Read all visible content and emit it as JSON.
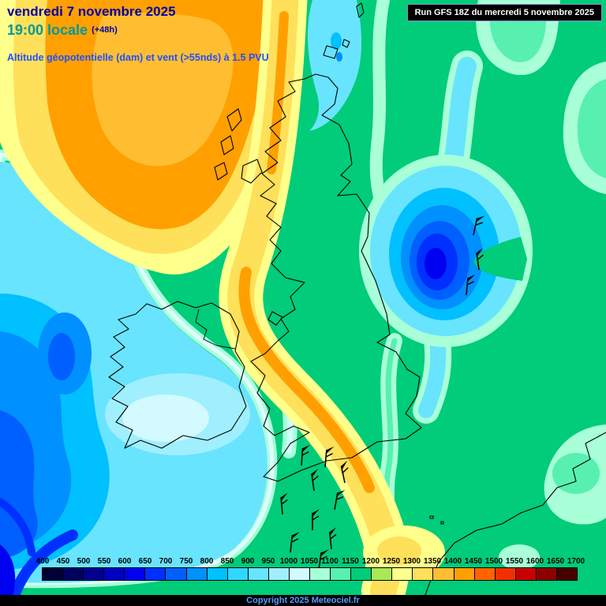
{
  "header": {
    "date": "vendredi 7 novembre 2025",
    "time": "19:00 locale",
    "offset": "(+48h)",
    "subtitle": "Altitude géopotentielle (dam) et vent (>55nds) à 1.5 PVU"
  },
  "run_box": {
    "text": "Run GFS 18Z du mercredi 5 novembre 2025"
  },
  "legend": {
    "values": [
      "400",
      "450",
      "500",
      "550",
      "600",
      "650",
      "700",
      "750",
      "800",
      "850",
      "900",
      "950",
      "1000",
      "1050",
      "1100",
      "1150",
      "1200",
      "1250",
      "1300",
      "1350",
      "1400",
      "1450",
      "1500",
      "1550",
      "1600",
      "1650",
      "1700"
    ],
    "colors": [
      "#000038",
      "#000060",
      "#000090",
      "#0000c0",
      "#0000f0",
      "#0030ff",
      "#0060ff",
      "#0090ff",
      "#00c0ff",
      "#30d8ff",
      "#68e4ff",
      "#a0efff",
      "#d2faff",
      "#a8ffd8",
      "#58f0b0",
      "#00cc7a",
      "#aae855",
      "#ffff8c",
      "#ffe05a",
      "#ffbe32",
      "#ffa000",
      "#ff6400",
      "#f03000",
      "#c80000",
      "#8c0000",
      "#460000"
    ]
  },
  "footer": {
    "copyright": "Copyright 2025 Meteociel.fr"
  },
  "colors": {
    "date_text": "#0000a8",
    "time_text": "#009898",
    "subtitle_text": "#2050ff",
    "run_box_bg": "#000000",
    "copyright_text": "#5a9cff",
    "map_background": "#00cc7a"
  }
}
